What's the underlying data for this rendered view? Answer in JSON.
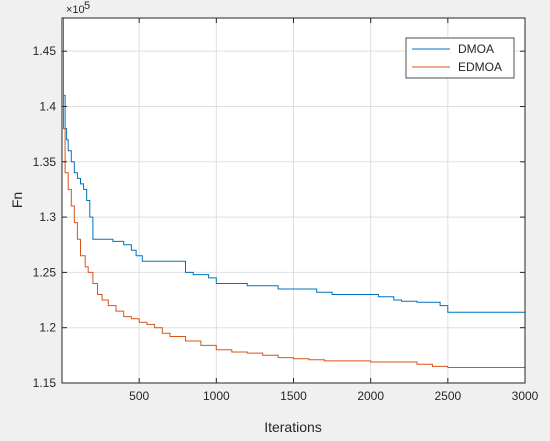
{
  "chart_data": {
    "type": "line",
    "title": "",
    "xlabel": "Iterations",
    "ylabel": "Fn",
    "xlim": [
      0,
      3000
    ],
    "ylim": [
      115000,
      148000
    ],
    "y_exponent_label": "×10",
    "y_exponent_power": "5",
    "grid": true,
    "legend_position": "top-right",
    "x_ticks": [
      500,
      1000,
      1500,
      2000,
      2500,
      3000
    ],
    "x_tick_labels": [
      "500",
      "1000",
      "1500",
      "2000",
      "2500",
      "3000"
    ],
    "y_ticks": [
      115000,
      120000,
      125000,
      130000,
      135000,
      140000,
      145000
    ],
    "y_tick_labels": [
      "1.15",
      "1.2",
      "1.25",
      "1.3",
      "1.35",
      "1.4",
      "1.45"
    ],
    "series": [
      {
        "name": "DMOA",
        "color": "#0072BD",
        "points": [
          [
            0,
            148000
          ],
          [
            10,
            141000
          ],
          [
            20,
            138000
          ],
          [
            30,
            137000
          ],
          [
            40,
            136000
          ],
          [
            60,
            135000
          ],
          [
            80,
            134000
          ],
          [
            100,
            133500
          ],
          [
            120,
            133000
          ],
          [
            140,
            132500
          ],
          [
            160,
            131500
          ],
          [
            180,
            130000
          ],
          [
            200,
            128000
          ],
          [
            250,
            128000
          ],
          [
            300,
            128000
          ],
          [
            330,
            127800
          ],
          [
            400,
            127500
          ],
          [
            450,
            127000
          ],
          [
            480,
            126500
          ],
          [
            520,
            126000
          ],
          [
            600,
            126000
          ],
          [
            700,
            126000
          ],
          [
            780,
            126000
          ],
          [
            800,
            125000
          ],
          [
            850,
            124800
          ],
          [
            950,
            124500
          ],
          [
            1000,
            124000
          ],
          [
            1100,
            124000
          ],
          [
            1150,
            124000
          ],
          [
            1200,
            123800
          ],
          [
            1300,
            123800
          ],
          [
            1400,
            123500
          ],
          [
            1500,
            123500
          ],
          [
            1650,
            123200
          ],
          [
            1750,
            123000
          ],
          [
            1800,
            123000
          ],
          [
            2000,
            123000
          ],
          [
            2050,
            122800
          ],
          [
            2150,
            122500
          ],
          [
            2200,
            122400
          ],
          [
            2300,
            122300
          ],
          [
            2450,
            122000
          ],
          [
            2500,
            121400
          ],
          [
            2600,
            121400
          ],
          [
            3000,
            121400
          ]
        ]
      },
      {
        "name": "EDMOA",
        "color": "#D95319",
        "points": [
          [
            0,
            148000
          ],
          [
            10,
            138000
          ],
          [
            20,
            134000
          ],
          [
            40,
            132500
          ],
          [
            60,
            131000
          ],
          [
            80,
            129500
          ],
          [
            100,
            128000
          ],
          [
            120,
            126500
          ],
          [
            150,
            125500
          ],
          [
            170,
            125000
          ],
          [
            200,
            124000
          ],
          [
            230,
            123000
          ],
          [
            260,
            122500
          ],
          [
            300,
            122000
          ],
          [
            350,
            121500
          ],
          [
            400,
            121000
          ],
          [
            450,
            120800
          ],
          [
            500,
            120500
          ],
          [
            550,
            120300
          ],
          [
            600,
            120000
          ],
          [
            650,
            119500
          ],
          [
            700,
            119200
          ],
          [
            800,
            118800
          ],
          [
            900,
            118400
          ],
          [
            1000,
            118000
          ],
          [
            1100,
            117800
          ],
          [
            1200,
            117700
          ],
          [
            1300,
            117500
          ],
          [
            1400,
            117300
          ],
          [
            1500,
            117200
          ],
          [
            1600,
            117100
          ],
          [
            1700,
            117000
          ],
          [
            1800,
            117000
          ],
          [
            2000,
            116900
          ],
          [
            2200,
            116900
          ],
          [
            2300,
            116700
          ],
          [
            2400,
            116500
          ],
          [
            2500,
            116400
          ],
          [
            2700,
            116400
          ],
          [
            3000,
            116400
          ]
        ]
      }
    ]
  }
}
